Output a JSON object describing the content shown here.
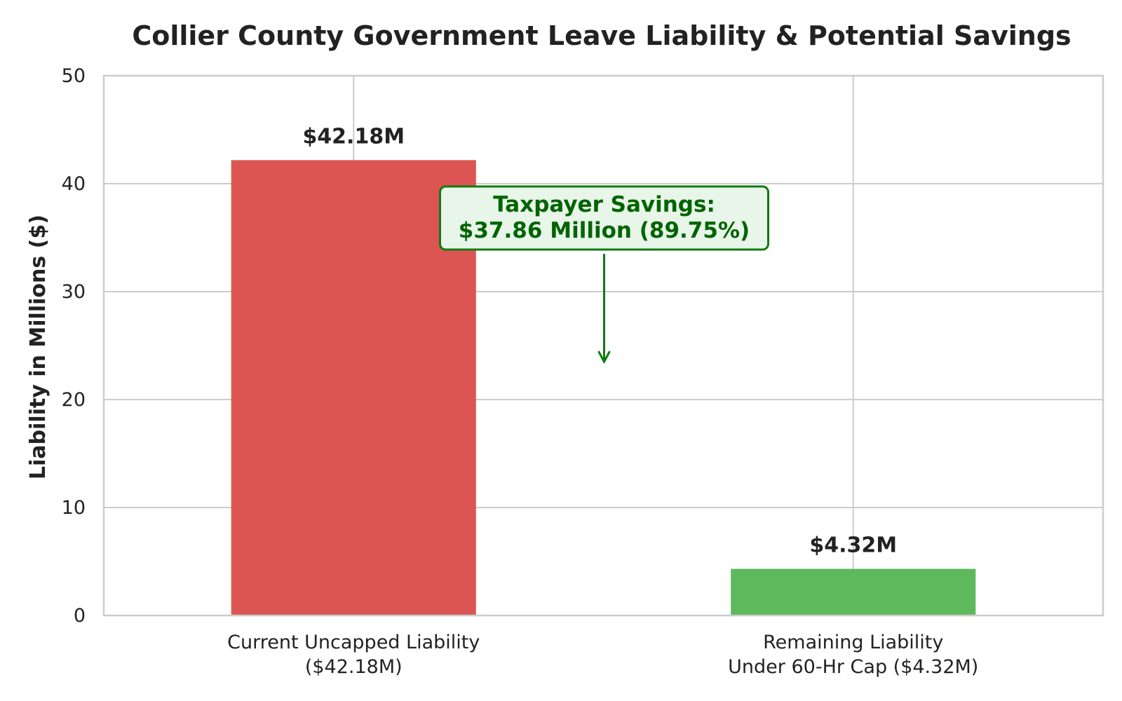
{
  "chart_data": {
    "type": "bar",
    "title": "Collier County Government Leave Liability & Potential Savings",
    "ylabel": "Liability in Millions ($)",
    "xlabel": "",
    "ylim": [
      0,
      50
    ],
    "yticks": [
      0,
      10,
      20,
      30,
      40,
      50
    ],
    "grid": true,
    "categories": [
      [
        "Current Uncapped Liability",
        "($42.18M)"
      ],
      [
        "Remaining Liability",
        "Under 60-Hr Cap ($4.32M)"
      ]
    ],
    "values": [
      42.18,
      4.32
    ],
    "value_labels": [
      "$42.18M",
      "$4.32M"
    ],
    "colors": [
      "#dc5552",
      "#5eb85c"
    ],
    "annotation": {
      "lines": [
        "Taxpayer Savings:",
        "$37.86 Million (89.75%)"
      ],
      "text_color": "#006400",
      "box_fill": "#e8f5e9",
      "box_edge": "#117a11",
      "arrow_from_y": 33.5,
      "arrow_to_y": 23.5,
      "arrow_color": "#117a11"
    }
  }
}
